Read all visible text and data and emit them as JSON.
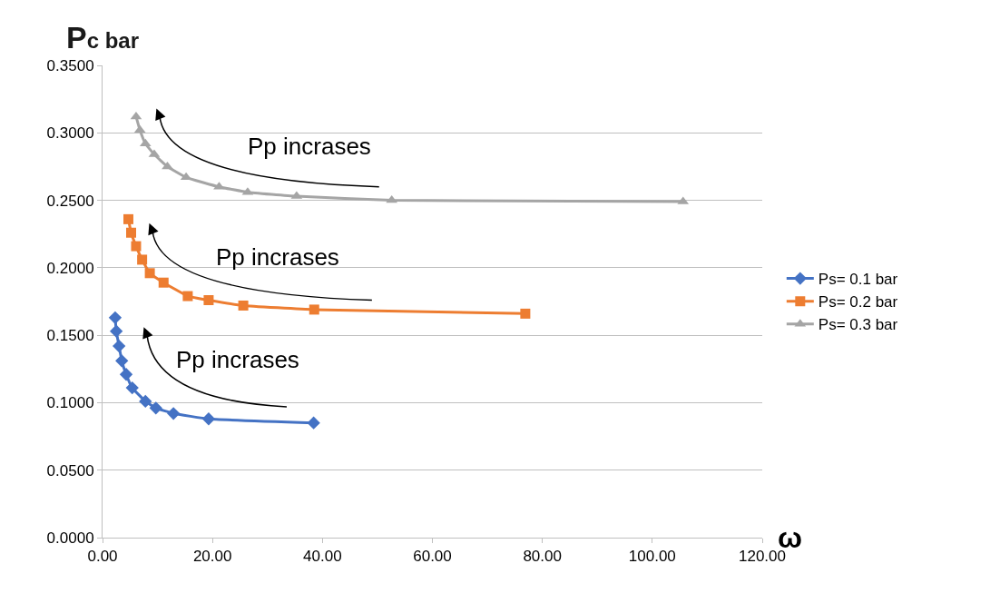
{
  "chart_data": {
    "type": "line",
    "xlabel": "ω",
    "ylabel": "Pc bar",
    "xlim": [
      0,
      120
    ],
    "xticks": [
      {
        "value": 0,
        "label": "0.00"
      },
      {
        "value": 20,
        "label": "20.00"
      },
      {
        "value": 40,
        "label": "40.00"
      },
      {
        "value": 60,
        "label": "60.00"
      },
      {
        "value": 80,
        "label": "80.00"
      },
      {
        "value": 100,
        "label": "100.00"
      },
      {
        "value": 120,
        "label": "120.00"
      }
    ],
    "ylim": [
      0,
      0.35
    ],
    "yticks": [
      {
        "value": 0,
        "label": "0.0000"
      },
      {
        "value": 0.05,
        "label": "0.0500"
      },
      {
        "value": 0.1,
        "label": "0.1000"
      },
      {
        "value": 0.15,
        "label": "0.1500"
      },
      {
        "value": 0.2,
        "label": "0.2000"
      },
      {
        "value": 0.25,
        "label": "0.2500"
      },
      {
        "value": 0.3,
        "label": "0.3000"
      },
      {
        "value": 0.35,
        "label": "0.3500"
      }
    ],
    "grid": "y",
    "legend": "right",
    "series": [
      {
        "name": "Ps= 0.1 bar",
        "color": "#4472c4",
        "marker": "diamond",
        "x": [
          2.3,
          2.5,
          3.0,
          3.5,
          4.3,
          5.4,
          7.8,
          9.7,
          12.9,
          19.3,
          38.4
        ],
        "values": [
          0.163,
          0.153,
          0.142,
          0.131,
          0.121,
          0.111,
          0.101,
          0.096,
          0.092,
          0.088,
          0.085
        ]
      },
      {
        "name": "Ps= 0.2 bar",
        "color": "#ed7d31",
        "marker": "square",
        "x": [
          4.7,
          5.2,
          6.1,
          7.2,
          8.6,
          11.1,
          15.5,
          19.3,
          25.6,
          38.5,
          76.9
        ],
        "values": [
          0.236,
          0.226,
          0.216,
          0.206,
          0.196,
          0.189,
          0.179,
          0.176,
          0.172,
          0.169,
          0.166
        ]
      },
      {
        "name": "Ps= 0.3 bar",
        "color": "#a5a5a5",
        "marker": "triangle",
        "x": [
          6.1,
          6.8,
          7.8,
          9.4,
          11.8,
          15.2,
          21.2,
          26.4,
          35.3,
          52.6,
          105.6
        ],
        "values": [
          0.312,
          0.302,
          0.292,
          0.284,
          0.275,
          0.267,
          0.26,
          0.256,
          0.253,
          0.25,
          0.249
        ]
      }
    ],
    "annotations": [
      "Pp incrases",
      "Pp incrases",
      "Pp incrases"
    ]
  }
}
